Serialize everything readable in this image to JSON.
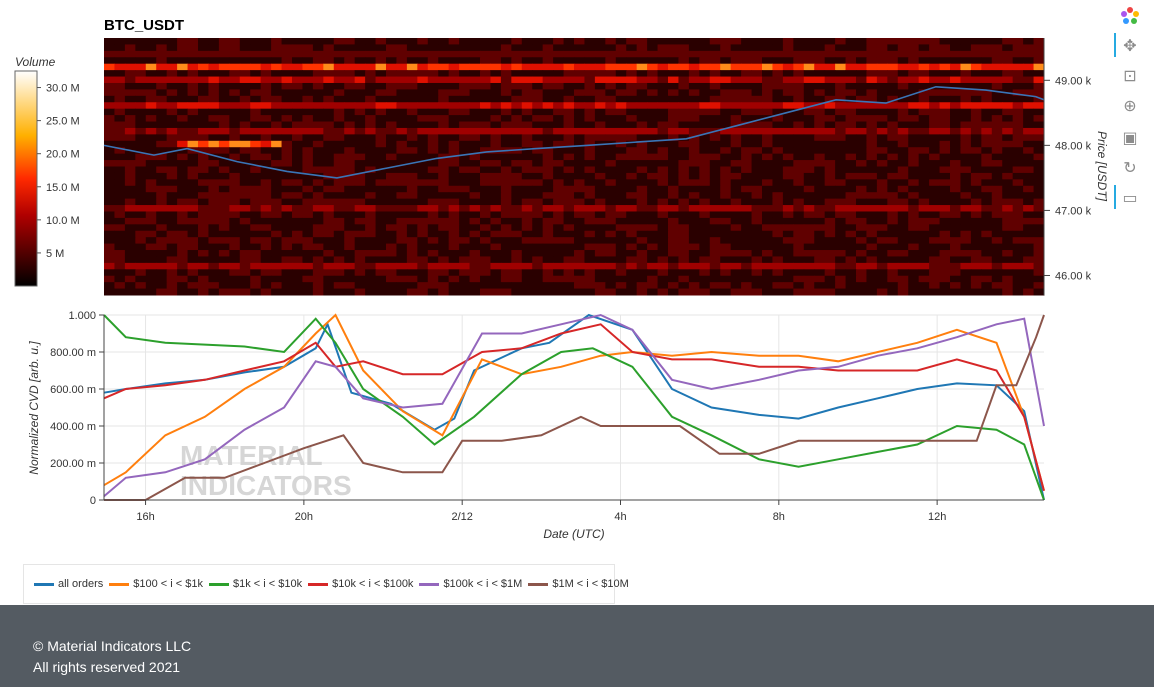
{
  "chart_data": [
    {
      "type": "heatmap",
      "title": "BTC_USDT",
      "colorbar": {
        "label": "Volume",
        "ticks": [
          "5 M",
          "10.0 M",
          "15.0 M",
          "20.0 M",
          "25.0 M",
          "30.0 M"
        ],
        "tick_values": [
          5,
          10,
          15,
          20,
          25,
          30
        ],
        "range": [
          0,
          32.5
        ]
      },
      "ylabel": "Price [USDT]",
      "y_ticks": [
        "46.00 k",
        "47.00 k",
        "48.00 k",
        "49.00 k"
      ],
      "y_tick_values": [
        46000,
        47000,
        48000,
        49000
      ],
      "ylim": [
        45700,
        49650
      ],
      "x_hours_range": [
        14.9,
        20.55
      ],
      "price_line": {
        "color": "#3a75b7",
        "x": [
          14.9,
          15.2,
          15.4,
          15.7,
          16.0,
          16.3,
          16.6,
          16.9,
          17.2,
          17.5,
          17.8,
          18.1,
          18.4,
          18.7,
          19.0,
          19.3,
          19.6,
          19.9,
          20.2,
          20.5,
          20.55
        ],
        "y": [
          48000,
          47850,
          47950,
          47750,
          47600,
          47500,
          47650,
          47800,
          47900,
          47950,
          48000,
          48050,
          48100,
          48300,
          48500,
          48700,
          48650,
          48900,
          48850,
          48750,
          48700
        ]
      }
    },
    {
      "type": "line",
      "xlabel": "Date (UTC)",
      "ylabel": "Normalized CVD [arb. u.]",
      "x_ticks": [
        "16h",
        "20h",
        "2/12",
        "4h",
        "8h",
        "12h"
      ],
      "x_tick_hours": [
        16,
        20,
        24,
        28,
        32,
        36
      ],
      "xlim": [
        14.95,
        38.7
      ],
      "y_ticks": [
        "0",
        "200.00 m",
        "400.00 m",
        "600.00 m",
        "800.00 m",
        "1.000"
      ],
      "y_tick_values": [
        0,
        0.2,
        0.4,
        0.6,
        0.8,
        1.0
      ],
      "ylim": [
        0,
        1.0
      ],
      "series": [
        {
          "name": "all orders",
          "color": "#1f77b4",
          "x": [
            14.95,
            15.5,
            16.5,
            17.5,
            18.5,
            19.5,
            20.3,
            20.6,
            21.2,
            22.2,
            23.3,
            23.8,
            24.3,
            25.5,
            26.2,
            27.2,
            28.3,
            29.3,
            30.3,
            31.5,
            32.5,
            33.5,
            34.5,
            35.5,
            36.5,
            37.5,
            38.2,
            38.7
          ],
          "y": [
            0.58,
            0.6,
            0.63,
            0.65,
            0.69,
            0.72,
            0.82,
            0.95,
            0.58,
            0.52,
            0.38,
            0.44,
            0.7,
            0.82,
            0.85,
            1.0,
            0.92,
            0.6,
            0.5,
            0.46,
            0.44,
            0.5,
            0.55,
            0.6,
            0.63,
            0.62,
            0.48,
            0.0
          ]
        },
        {
          "name": "$100 < i < $1k",
          "color": "#ff7f0e",
          "x": [
            14.95,
            15.5,
            16.5,
            17.5,
            18.5,
            19.5,
            20.3,
            20.8,
            21.5,
            22.5,
            23.5,
            24.5,
            25.5,
            26.5,
            27.5,
            28.3,
            29.3,
            30.3,
            31.5,
            32.5,
            33.5,
            34.5,
            35.5,
            36.5,
            37.5,
            38.2,
            38.7
          ],
          "y": [
            0.08,
            0.15,
            0.35,
            0.45,
            0.6,
            0.72,
            0.9,
            1.0,
            0.7,
            0.48,
            0.35,
            0.76,
            0.68,
            0.72,
            0.78,
            0.8,
            0.78,
            0.8,
            0.78,
            0.78,
            0.75,
            0.8,
            0.85,
            0.92,
            0.85,
            0.45,
            0.05
          ]
        },
        {
          "name": "$1k < i < $10k",
          "color": "#2ca02c",
          "x": [
            14.95,
            15.5,
            16.5,
            17.5,
            18.5,
            19.5,
            20.3,
            20.8,
            21.5,
            22.5,
            23.3,
            24.3,
            25.5,
            26.5,
            27.3,
            28.3,
            29.3,
            30.3,
            31.5,
            32.5,
            33.5,
            34.5,
            35.5,
            36.5,
            37.5,
            38.2,
            38.7
          ],
          "y": [
            1.0,
            0.88,
            0.85,
            0.84,
            0.83,
            0.8,
            0.98,
            0.85,
            0.6,
            0.45,
            0.3,
            0.45,
            0.68,
            0.8,
            0.82,
            0.72,
            0.45,
            0.35,
            0.22,
            0.18,
            0.22,
            0.26,
            0.3,
            0.4,
            0.38,
            0.3,
            0.0
          ]
        },
        {
          "name": "$10k < i < $100k",
          "color": "#d62728",
          "x": [
            14.95,
            15.5,
            16.5,
            17.5,
            18.5,
            19.5,
            20.3,
            20.8,
            21.5,
            22.5,
            23.5,
            24.5,
            25.5,
            26.5,
            27.5,
            28.3,
            29.3,
            30.3,
            31.5,
            32.5,
            33.5,
            34.5,
            35.5,
            36.5,
            37.5,
            38.2,
            38.7
          ],
          "y": [
            0.55,
            0.6,
            0.62,
            0.65,
            0.7,
            0.75,
            0.85,
            0.72,
            0.75,
            0.68,
            0.68,
            0.8,
            0.82,
            0.9,
            0.95,
            0.8,
            0.76,
            0.76,
            0.72,
            0.72,
            0.7,
            0.7,
            0.7,
            0.76,
            0.7,
            0.45,
            0.05
          ]
        },
        {
          "name": "$100k < i < $1M",
          "color": "#9467bd",
          "x": [
            14.95,
            15.5,
            16.5,
            17.5,
            18.5,
            19.5,
            20.3,
            20.8,
            21.5,
            22.5,
            23.5,
            24.5,
            25.5,
            26.5,
            27.5,
            28.3,
            29.3,
            30.3,
            31.5,
            32.5,
            33.5,
            34.5,
            35.5,
            36.5,
            37.5,
            38.2,
            38.7
          ],
          "y": [
            0.02,
            0.12,
            0.15,
            0.22,
            0.38,
            0.5,
            0.75,
            0.72,
            0.55,
            0.5,
            0.52,
            0.9,
            0.9,
            0.95,
            1.0,
            0.92,
            0.65,
            0.6,
            0.65,
            0.7,
            0.72,
            0.78,
            0.82,
            0.88,
            0.95,
            0.98,
            0.4
          ]
        },
        {
          "name": "$1M < i < $10M",
          "color": "#8c564b",
          "x": [
            14.95,
            16.0,
            17.0,
            18.0,
            19.0,
            20.0,
            21.0,
            21.5,
            22.5,
            23.5,
            24.0,
            25.0,
            26.0,
            27.0,
            27.5,
            28.5,
            29.5,
            30.5,
            31.5,
            32.5,
            33.5,
            34.5,
            35.5,
            36.5,
            37.0,
            37.5,
            38.0,
            38.5,
            38.7
          ],
          "y": [
            0.0,
            0.0,
            0.12,
            0.12,
            0.2,
            0.28,
            0.35,
            0.2,
            0.15,
            0.15,
            0.32,
            0.32,
            0.35,
            0.45,
            0.4,
            0.4,
            0.4,
            0.25,
            0.25,
            0.32,
            0.32,
            0.32,
            0.32,
            0.32,
            0.32,
            0.62,
            0.62,
            0.88,
            1.0
          ]
        }
      ]
    }
  ],
  "watermark": "MATERIAL INDICATORS",
  "toolbar": [
    "bokeh-logo-icon",
    "pan-icon",
    "box-zoom-icon",
    "wheel-zoom-icon",
    "save-icon",
    "reset-icon",
    "hover-icon"
  ],
  "footer": {
    "line1": "© Material Indicators LLC",
    "line2": "All rights reserved 2021"
  }
}
